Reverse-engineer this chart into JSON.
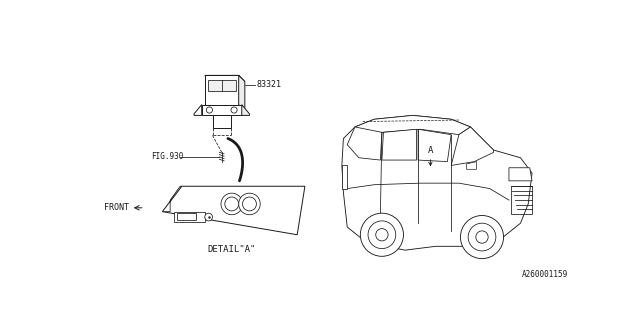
{
  "bg_color": "#ffffff",
  "line_color": "#1a1a1a",
  "fig_width": 6.4,
  "fig_height": 3.2,
  "dpi": 100,
  "part_number_label": "83321",
  "fig_ref_label": "FIG.930",
  "front_label": "FRONT",
  "detail_label": "DETAIL\"A\"",
  "location_label": "A",
  "doc_number": "A260001159",
  "lw": 0.7
}
